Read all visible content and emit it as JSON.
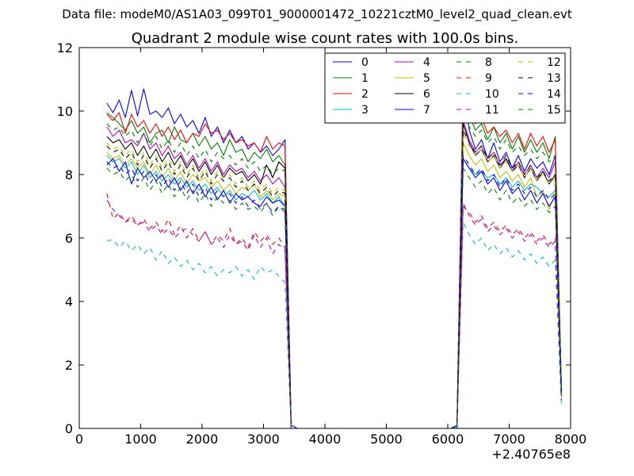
{
  "suptitle": "Data file: modeM0/AS1A03_099T01_9000001472_10221cztM0_level2_quad_clean.evt",
  "chart_data": {
    "type": "line",
    "title": "Quadrant 2 module wise count rates with 100.0s bins.",
    "xlabel": "",
    "ylabel": "",
    "x_offset_label": "+2.40765e8",
    "xlim": [
      0,
      8000
    ],
    "ylim": [
      0,
      12
    ],
    "xticks": [
      0,
      1000,
      2000,
      3000,
      4000,
      5000,
      6000,
      7000,
      8000
    ],
    "yticks": [
      0,
      2,
      4,
      6,
      8,
      10,
      12
    ],
    "grid": false,
    "legend_position": "top-right",
    "legend_columns": 4,
    "x_segments": [
      {
        "start": 450,
        "end": 3350,
        "step": 100
      },
      {
        "start": 3450,
        "end": 3450,
        "step": 100
      },
      {
        "start": 6150,
        "end": 6150,
        "step": 100
      },
      {
        "start": 6250,
        "end": 7750,
        "step": 100
      },
      {
        "start": 7850,
        "end": 7850,
        "step": 100
      }
    ],
    "series": [
      {
        "name": "0",
        "color": "#0000ff",
        "dashed": false,
        "active1": [
          10.25,
          9.95,
          10.35,
          9.8,
          10.65,
          9.85,
          10.7,
          9.9,
          10.0,
          9.8,
          10.1,
          9.6,
          9.9,
          9.5,
          9.7,
          9.3,
          9.8,
          9.2,
          9.5,
          9.0,
          9.4,
          9.0,
          9.2,
          8.8,
          9.0,
          8.7,
          8.9,
          8.6,
          8.8,
          9.1
        ],
        "tail1": 0.1,
        "start2": 0.1,
        "active2": [
          10.95,
          9.4,
          8.8,
          9.1,
          8.5,
          9.0,
          8.4,
          8.7,
          8.2,
          8.6,
          8.1,
          8.5,
          8.2,
          8.4,
          8.0,
          8.6
        ],
        "tail2": 1.3
      },
      {
        "name": "1",
        "color": "#008000",
        "dashed": false,
        "active1": [
          9.95,
          9.8,
          9.6,
          9.4,
          9.7,
          9.3,
          9.5,
          9.0,
          9.3,
          9.4,
          9.0,
          9.5,
          9.1,
          9.0,
          9.3,
          8.9,
          9.2,
          8.8,
          9.0,
          8.6,
          9.1,
          8.7,
          8.8,
          8.4,
          8.7,
          8.5,
          8.8,
          8.4,
          8.6,
          8.3
        ],
        "tail1": 0.0,
        "start2": 0.05,
        "active2": [
          9.6,
          9.85,
          9.4,
          9.6,
          9.1,
          9.5,
          9.0,
          9.3,
          8.8,
          9.2,
          8.7,
          9.1,
          8.7,
          9.0,
          8.5,
          9.2
        ],
        "tail2": 1.2
      },
      {
        "name": "2",
        "color": "#ff0000",
        "dashed": false,
        "active1": [
          9.9,
          9.7,
          9.95,
          9.3,
          9.9,
          9.5,
          9.7,
          9.3,
          9.6,
          9.2,
          9.5,
          9.1,
          9.4,
          9.0,
          9.3,
          9.2,
          9.6,
          9.3,
          9.4,
          9.1,
          9.3,
          9.0,
          9.1,
          8.9,
          9.0,
          8.7,
          9.2,
          8.8,
          9.0,
          8.9
        ],
        "tail1": 0.0,
        "start2": 0.0,
        "active2": [
          10.75,
          10.0,
          9.6,
          9.8,
          9.3,
          9.5,
          9.2,
          9.4,
          9.0,
          9.3,
          8.8,
          9.3,
          8.9,
          9.2,
          8.7,
          9.1
        ],
        "tail2": 1.05
      },
      {
        "name": "3",
        "color": "#00bfbf",
        "dashed": false,
        "active1": [
          8.6,
          8.4,
          8.5,
          8.2,
          8.4,
          8.0,
          8.3,
          7.9,
          8.1,
          7.8,
          8.0,
          7.7,
          7.9,
          7.6,
          7.8,
          7.5,
          7.7,
          7.4,
          7.6,
          7.3,
          7.5,
          7.2,
          7.4,
          7.3,
          7.5,
          7.2,
          7.4,
          7.1,
          7.3,
          7.0
        ],
        "tail1": 0.0,
        "start2": 0.0,
        "active2": [
          8.5,
          8.2,
          8.0,
          8.1,
          7.9,
          8.0,
          7.7,
          7.9,
          7.6,
          7.8,
          7.5,
          7.7,
          7.6,
          7.4,
          7.3,
          7.5
        ],
        "tail2": 1.1
      },
      {
        "name": "4",
        "color": "#bf00bf",
        "dashed": false,
        "active1": [
          9.5,
          9.2,
          9.4,
          9.0,
          9.1,
          8.9,
          9.3,
          8.8,
          9.0,
          8.6,
          8.9,
          8.5,
          8.7,
          8.3,
          8.6,
          8.2,
          8.5,
          8.1,
          8.4,
          8.0,
          8.3,
          8.1,
          8.2,
          7.9,
          8.1,
          7.8,
          8.0,
          7.7,
          7.9,
          7.6
        ],
        "tail1": 0.0,
        "start2": 0.0,
        "active2": [
          9.7,
          9.1,
          8.7,
          8.9,
          8.5,
          8.7,
          8.3,
          8.5,
          8.1,
          8.4,
          8.0,
          8.3,
          7.9,
          8.2,
          7.9,
          8.4
        ],
        "tail2": 1.2
      },
      {
        "name": "5",
        "color": "#bfbf00",
        "dashed": false,
        "active1": [
          8.7,
          8.5,
          8.6,
          8.3,
          8.5,
          8.2,
          8.4,
          8.0,
          8.3,
          7.9,
          8.2,
          7.8,
          8.1,
          7.7,
          8.0,
          7.8,
          7.9,
          7.6,
          7.8,
          7.5,
          7.7,
          7.4,
          7.6,
          7.5,
          7.7,
          7.3,
          7.5,
          7.2,
          7.4,
          7.3
        ],
        "tail1": 0.0,
        "start2": 0.0,
        "active2": [
          9.0,
          8.6,
          8.3,
          8.5,
          8.1,
          8.3,
          7.9,
          8.1,
          7.8,
          8.0,
          7.6,
          7.9,
          7.3,
          7.5,
          6.9,
          7.4
        ],
        "tail2": 1.2
      },
      {
        "name": "6",
        "color": "#000000",
        "dashed": false,
        "active1": [
          9.2,
          9.0,
          9.1,
          8.8,
          9.0,
          8.6,
          8.9,
          8.5,
          8.8,
          8.4,
          8.7,
          8.3,
          8.6,
          8.2,
          8.5,
          8.1,
          8.4,
          8.0,
          8.3,
          7.9,
          8.2,
          8.0,
          8.1,
          7.8,
          8.0,
          7.7,
          8.3,
          7.9,
          8.4,
          8.2
        ],
        "tail1": 0.0,
        "start2": 0.0,
        "active2": [
          9.6,
          9.0,
          8.6,
          8.8,
          8.4,
          8.6,
          8.2,
          8.5,
          8.1,
          8.3,
          7.9,
          8.2,
          7.8,
          8.1,
          7.7,
          8.0
        ],
        "tail2": 1.1
      },
      {
        "name": "7",
        "color": "#0000ff",
        "dashed": false,
        "active1": [
          8.3,
          8.5,
          8.1,
          8.4,
          7.7,
          8.2,
          7.9,
          8.1,
          7.8,
          8.0,
          7.6,
          7.9,
          7.5,
          7.8,
          7.4,
          7.7,
          7.3,
          7.6,
          7.2,
          7.5,
          7.1,
          7.4,
          7.2,
          7.3,
          7.1,
          7.0,
          7.3,
          7.1,
          7.2,
          7.0
        ],
        "tail1": 0.0,
        "start2": 0.0,
        "active2": [
          8.5,
          8.2,
          7.9,
          8.1,
          7.7,
          7.9,
          7.5,
          7.8,
          7.4,
          7.6,
          7.2,
          7.5,
          7.1,
          7.4,
          7.0,
          7.3
        ],
        "tail2": 1.1
      },
      {
        "name": "8",
        "color": "#008000",
        "dashed": true,
        "active1": [
          8.2,
          8.0,
          8.1,
          7.8,
          8.0,
          7.6,
          7.9,
          7.5,
          7.8,
          7.4,
          7.7,
          7.3,
          7.6,
          7.2,
          7.5,
          7.1,
          7.4,
          7.0,
          7.3,
          7.1,
          7.2,
          6.9,
          7.1,
          6.9,
          7.0,
          6.8,
          7.1,
          6.7,
          7.0,
          6.8
        ],
        "tail1": 0.0,
        "start2": 0.0,
        "active2": [
          8.2,
          7.9,
          7.6,
          7.8,
          7.4,
          7.6,
          7.2,
          7.5,
          7.1,
          7.3,
          7.0,
          7.2,
          6.9,
          7.1,
          6.8,
          7.0
        ],
        "tail2": 1.0
      },
      {
        "name": "9",
        "color": "#ff0000",
        "dashed": true,
        "active1": [
          7.4,
          6.6,
          6.8,
          6.5,
          6.7,
          6.4,
          6.6,
          6.3,
          6.5,
          6.2,
          6.6,
          6.1,
          6.4,
          6.0,
          6.3,
          5.9,
          6.2,
          5.8,
          6.1,
          5.9,
          6.3,
          5.8,
          6.0,
          5.7,
          6.2,
          5.9,
          6.1,
          5.8,
          6.0,
          5.7
        ],
        "tail1": 0.0,
        "start2": 0.0,
        "active2": [
          7.0,
          6.8,
          6.5,
          6.7,
          6.3,
          6.5,
          6.2,
          6.4,
          6.1,
          6.3,
          6.0,
          6.2,
          5.9,
          6.1,
          5.8,
          6.0
        ],
        "tail2": 0.9
      },
      {
        "name": "10",
        "color": "#00bfbf",
        "dashed": true,
        "active1": [
          5.9,
          5.95,
          5.7,
          5.9,
          5.6,
          5.8,
          5.5,
          5.7,
          5.3,
          5.6,
          5.2,
          5.4,
          5.1,
          5.3,
          5.0,
          5.2,
          4.9,
          5.1,
          4.8,
          5.0,
          4.9,
          5.1,
          4.8,
          5.0,
          4.7,
          5.1,
          4.9,
          5.0,
          4.8,
          4.6
        ],
        "tail1": 0.0,
        "start2": 0.0,
        "active2": [
          6.5,
          6.1,
          5.8,
          6.0,
          5.6,
          5.8,
          5.5,
          5.7,
          5.4,
          5.6,
          5.3,
          5.5,
          5.2,
          5.4,
          5.1,
          5.3
        ],
        "tail2": 0.7
      },
      {
        "name": "11",
        "color": "#bf00bf",
        "dashed": true,
        "active1": [
          7.2,
          6.9,
          6.7,
          6.5,
          6.6,
          6.4,
          6.5,
          6.2,
          6.4,
          6.1,
          6.3,
          6.0,
          6.2,
          6.3,
          6.1,
          5.9,
          6.2,
          5.8,
          6.0,
          5.7,
          6.1,
          5.8,
          5.9,
          5.6,
          6.1,
          5.7,
          6.0,
          5.5,
          5.8,
          5.6
        ],
        "tail1": 0.0,
        "start2": 0.0,
        "active2": [
          7.1,
          6.7,
          6.4,
          6.6,
          6.2,
          6.4,
          6.1,
          6.3,
          6.0,
          6.2,
          5.9,
          6.1,
          5.8,
          6.0,
          5.7,
          5.9
        ],
        "tail2": 0.9
      },
      {
        "name": "12",
        "color": "#bfbf00",
        "dashed": true,
        "active1": [
          9.0,
          8.8,
          8.9,
          8.6,
          8.8,
          8.4,
          8.7,
          8.3,
          8.6,
          8.2,
          8.5,
          8.1,
          8.4,
          8.0,
          8.3,
          7.9,
          8.2,
          7.8,
          8.1,
          7.9,
          8.0,
          7.7,
          7.9,
          7.6,
          7.8,
          7.5,
          7.7,
          7.4,
          7.6,
          7.5
        ],
        "tail1": 0.0,
        "start2": 0.0,
        "active2": [
          9.3,
          8.9,
          8.6,
          8.8,
          8.4,
          8.6,
          8.2,
          8.4,
          8.1,
          8.3,
          7.9,
          8.2,
          7.8,
          8.0,
          7.7,
          7.9
        ],
        "tail2": 1.1
      },
      {
        "name": "13",
        "color": "#000000",
        "dashed": true,
        "active1": [
          8.9,
          8.7,
          8.8,
          8.5,
          8.7,
          8.3,
          8.6,
          8.2,
          8.5,
          8.1,
          8.4,
          8.0,
          8.3,
          7.9,
          8.2,
          7.8,
          8.1,
          7.7,
          8.0,
          7.8,
          7.9,
          7.6,
          7.8,
          7.5,
          7.7,
          7.4,
          7.6,
          7.3,
          7.5,
          7.4
        ],
        "tail1": 0.0,
        "start2": 0.0,
        "active2": [
          9.4,
          9.0,
          8.7,
          8.9,
          8.5,
          8.7,
          8.3,
          8.6,
          8.2,
          8.4,
          8.0,
          8.3,
          7.9,
          8.1,
          7.8,
          8.0
        ],
        "tail2": 1.1
      },
      {
        "name": "14",
        "color": "#0000ff",
        "dashed": true,
        "active1": [
          8.4,
          8.2,
          8.3,
          8.0,
          8.2,
          7.8,
          8.1,
          7.7,
          8.0,
          7.6,
          7.9,
          7.5,
          7.8,
          7.4,
          7.7,
          7.3,
          7.6,
          7.2,
          7.5,
          7.3,
          7.4,
          7.1,
          7.3,
          7.0,
          7.2,
          6.9,
          7.1,
          6.8,
          7.0,
          6.9
        ],
        "tail1": 0.0,
        "start2": 0.0,
        "active2": [
          8.6,
          8.3,
          8.0,
          8.2,
          7.8,
          8.0,
          7.6,
          7.9,
          7.5,
          7.7,
          7.4,
          7.6,
          7.3,
          7.5,
          7.2,
          7.4
        ],
        "tail2": 1.0
      },
      {
        "name": "15",
        "color": "#008000",
        "dashed": true,
        "active1": [
          9.6,
          9.4,
          9.5,
          9.2,
          9.4,
          9.0,
          9.3,
          8.9,
          9.2,
          8.8,
          9.1,
          8.7,
          9.0,
          8.6,
          8.9,
          8.5,
          8.8,
          8.4,
          8.7,
          8.5,
          8.6,
          8.3,
          8.5,
          8.2,
          8.4,
          8.1,
          8.3,
          8.0,
          8.2,
          8.1
        ],
        "tail1": 0.0,
        "start2": 0.0,
        "active2": [
          9.9,
          9.5,
          9.2,
          9.4,
          9.0,
          9.2,
          8.8,
          9.1,
          8.7,
          8.9,
          8.6,
          8.8,
          8.5,
          8.7,
          8.4,
          8.6
        ],
        "tail2": 1.1
      }
    ]
  }
}
